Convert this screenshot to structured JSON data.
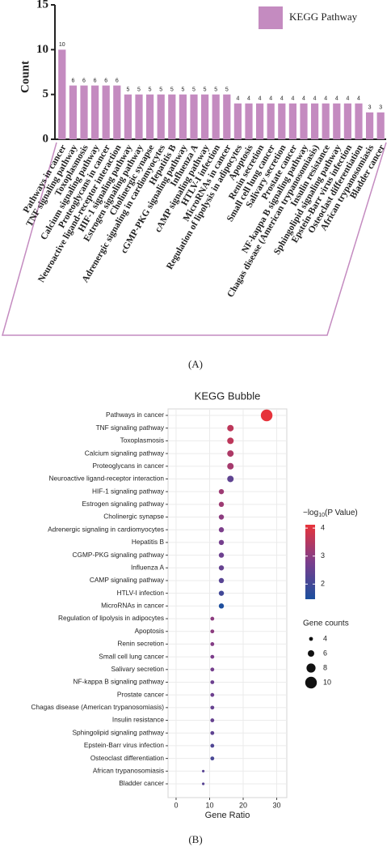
{
  "chart_data": [
    {
      "type": "bar",
      "panel_label": "(A)",
      "ylabel": "Count",
      "categories": [
        "Pathways in cancer",
        "TNF signaling pathway",
        "Toxoplasmosis",
        "Calcium signaling pathway",
        "Proteoglycans in cancer",
        "Neuroactive ligand-receptor interaction",
        "HIF-1 signaling pathway",
        "Estrogen signaling pathway",
        "Cholinergic synapse",
        "Adrenergic signaling in cardiomyocytes",
        "Hepatitis B",
        "cGMP-PKG signaling pathway",
        "Influenza A",
        "cAMP signaling pathway",
        "HTLV-I infection",
        "MicroRNAs in cancer",
        "Regulation of lipolysis in adipocytes",
        "Apoptosis",
        "Renin secretion",
        "Small cell lung cancer",
        "Salivary secretion",
        "Prostate cancer",
        "NF-kappa B signaling pathway",
        "Chagas disease (American trypanosomiasis)",
        "Insulin resistance",
        "Sphingolipid signaling pathway",
        "Epstein-Barr virus infection",
        "Osteoclast differentiation",
        "African trypanosomiasis",
        "Bladder cancer"
      ],
      "series": [
        {
          "name": "KEGG Pathway",
          "color": "#c48bc0",
          "values": [
            10,
            6,
            6,
            6,
            6,
            6,
            5,
            5,
            5,
            5,
            5,
            5,
            5,
            5,
            5,
            5,
            4,
            4,
            4,
            4,
            4,
            4,
            4,
            4,
            4,
            4,
            4,
            4,
            3,
            3
          ]
        }
      ],
      "ylim": [
        0,
        15
      ],
      "yticks": [
        0,
        5,
        10,
        15
      ],
      "legend": "upper right",
      "grid": false
    },
    {
      "type": "bubble",
      "panel_label": "(B)",
      "title": "KEGG Bubble",
      "xlabel": "Gene Ratio",
      "categories": [
        "Pathways in cancer",
        "TNF signaling pathway",
        "Toxoplasmosis",
        "Calcium signaling pathway",
        "Proteoglycans in cancer",
        "Neuroactive ligand-receptor interaction",
        "HIF-1 signaling pathway",
        "Estrogen signaling pathway",
        "Cholinergic synapse",
        "Adrenergic signaling in cardiomyocytes",
        "Hepatitis B",
        "CGMP-PKG signaling pathway",
        "Influenza A",
        "CAMP signaling pathway",
        "HTLV-I infection",
        "MicroRNAs in cancer",
        "Regulation of lipolysis in adipocytes",
        "Apoptosis",
        "Renin secretion",
        "Small cell lung cancer",
        "Salivary secretion",
        "NF-kappa B signaling pathway",
        "Prostate cancer",
        "Chagas disease (American trypanosomiasis)",
        "Insulin resistance",
        "Sphingolipid signaling pathway",
        "Epstein-Barr virus infection",
        "Osteoclast differentiation",
        "African trypanosomiasis",
        "Bladder cancer"
      ],
      "x": [
        27.0,
        16.2,
        16.2,
        16.2,
        16.2,
        16.2,
        13.5,
        13.5,
        13.5,
        13.5,
        13.5,
        13.5,
        13.5,
        13.5,
        13.5,
        13.5,
        10.8,
        10.8,
        10.8,
        10.8,
        10.8,
        10.8,
        10.8,
        10.8,
        10.8,
        10.8,
        10.8,
        10.8,
        8.1,
        8.1
      ],
      "color_values": [
        4.1,
        3.6,
        3.6,
        3.4,
        3.3,
        2.4,
        3.2,
        3.2,
        3.0,
        2.8,
        2.7,
        2.6,
        2.5,
        2.3,
        2.0,
        1.5,
        3.0,
        3.0,
        2.9,
        2.8,
        2.7,
        2.6,
        2.6,
        2.5,
        2.5,
        2.4,
        2.2,
        2.1,
        2.3,
        2.3
      ],
      "size_values": [
        10,
        6,
        6,
        6,
        6,
        6,
        5,
        5,
        5,
        5,
        5,
        5,
        5,
        5,
        5,
        5,
        4,
        4,
        4,
        4,
        4,
        4,
        4,
        4,
        4,
        4,
        4,
        4,
        3,
        3
      ],
      "xlim": [
        -2.4,
        33
      ],
      "xticks": [
        0,
        10,
        20,
        30
      ],
      "grid": true,
      "color_label": [
        "−log",
        "10",
        "(P Value)"
      ],
      "clim": [
        1.46,
        4.12
      ],
      "cticks": [
        2,
        3,
        4
      ],
      "colormap": [
        "#1b4f9e",
        "#7b3e8c",
        "#e8333a"
      ],
      "size_legend_title": "Gene counts",
      "size_legend_values": [
        4,
        6,
        8,
        10
      ]
    }
  ]
}
